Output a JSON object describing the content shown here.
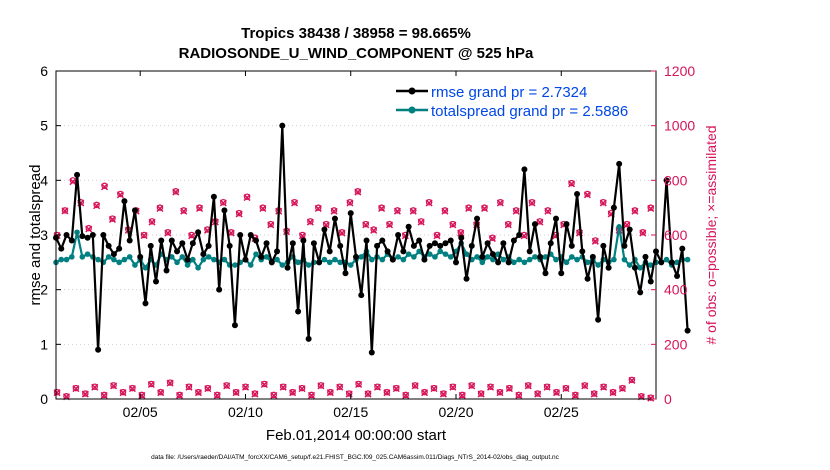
{
  "title": {
    "line1": "Tropics 38438 / 38958 = 98.665%",
    "line2": "RADIOSONDE_U_WIND_COMPONENT @ 525 hPa"
  },
  "footer": "data file: /Users/raeder/DAI/ATM_forcXX/CAM6_setup/f.e21.FHIST_BGC.f09_025.CAM6assim.011/Diags_NTrS_2014-02/obs_diag_output.nc",
  "chart_data": {
    "type": "line",
    "title": "Tropics 38438 / 38958 = 98.665%  RADIOSONDE_U_WIND_COMPONENT @ 525 hPa",
    "xlabel": "Feb.01,2014 00:00:00 start",
    "ylabel_left": "rmse and totalspread",
    "ylabel_right": "# of obs: o=possible; ×=assimilated",
    "xlim": [
      1,
      29.5
    ],
    "ylim_left": [
      0,
      6
    ],
    "ylim_right": [
      0,
      1200
    ],
    "x_ticks": [
      5,
      10,
      15,
      20,
      25
    ],
    "x_tick_labels": [
      "02/05",
      "02/10",
      "02/15",
      "02/20",
      "02/25"
    ],
    "y_left_ticks": [
      "0",
      "1",
      "2",
      "3",
      "4",
      "5",
      "6"
    ],
    "y_right_ticks": [
      "0",
      "200",
      "400",
      "600",
      "800",
      "1000",
      "1200"
    ],
    "colors": {
      "rmse": "#000000",
      "spread": "#008080",
      "obs": "#d6145a",
      "legend_text": "#0047e6"
    },
    "legend": [
      {
        "name": "rmse grand pr = 2.7324",
        "series": "rmse"
      },
      {
        "name": "totalspread grand pr = 2.5886",
        "series": "spread"
      }
    ],
    "x_step": 0.25,
    "x_start": 1.0,
    "rmse": [
      2.95,
      2.75,
      3.0,
      2.9,
      4.1,
      2.98,
      2.95,
      3.0,
      0.9,
      3.0,
      2.8,
      2.65,
      2.75,
      3.62,
      2.9,
      3.45,
      2.6,
      1.75,
      2.8,
      2.15,
      2.9,
      2.35,
      2.9,
      2.7,
      2.85,
      2.55,
      2.85,
      3.05,
      2.65,
      2.8,
      3.7,
      2.0,
      3.45,
      2.8,
      1.35,
      3.0,
      2.55,
      3.0,
      2.9,
      2.6,
      2.85,
      2.5,
      2.7,
      5.0,
      2.4,
      2.85,
      1.6,
      2.9,
      1.1,
      2.85,
      2.5,
      3.1,
      2.7,
      3.3,
      2.8,
      2.3,
      3.4,
      2.6,
      1.9,
      2.9,
      0.85,
      2.8,
      2.9,
      2.7,
      2.55,
      3.0,
      2.7,
      3.15,
      2.8,
      2.9,
      2.55,
      2.8,
      2.85,
      2.8,
      2.85,
      2.9,
      2.5,
      2.95,
      2.2,
      2.8,
      3.3,
      2.6,
      2.85,
      2.65,
      2.5,
      2.85,
      2.5,
      2.9,
      3.0,
      4.2,
      2.7,
      3.2,
      2.6,
      2.3,
      2.85,
      3.3,
      2.3,
      3.2,
      2.8,
      3.75,
      2.7,
      2.2,
      2.6,
      1.45,
      2.8,
      2.4,
      3.5,
      4.3,
      2.8,
      3.1,
      2.4,
      1.95,
      2.6,
      2.15,
      2.7,
      2.5,
      4.0,
      2.5,
      2.25,
      2.75,
      1.25
    ],
    "spread": [
      2.5,
      2.55,
      2.55,
      2.6,
      3.05,
      2.6,
      2.65,
      2.6,
      2.55,
      2.5,
      2.6,
      2.55,
      2.5,
      2.55,
      2.6,
      2.45,
      2.55,
      2.4,
      2.55,
      2.45,
      2.65,
      2.55,
      2.6,
      2.5,
      2.6,
      2.45,
      2.55,
      2.4,
      2.55,
      2.6,
      2.55,
      2.5,
      2.55,
      2.45,
      2.45,
      2.5,
      2.55,
      2.45,
      2.65,
      2.55,
      2.6,
      2.5,
      2.55,
      2.45,
      2.5,
      2.6,
      2.5,
      2.55,
      2.45,
      2.5,
      2.5,
      2.55,
      2.5,
      2.55,
      2.5,
      2.5,
      2.45,
      2.55,
      2.6,
      2.7,
      2.55,
      2.6,
      2.55,
      2.65,
      2.55,
      2.6,
      2.55,
      2.65,
      2.6,
      2.7,
      2.6,
      2.65,
      2.6,
      2.7,
      2.65,
      2.6,
      2.7,
      2.85,
      2.65,
      2.55,
      2.6,
      2.5,
      2.6,
      2.55,
      2.65,
      2.55,
      2.6,
      2.5,
      2.55,
      2.5,
      2.55,
      2.6,
      2.55,
      2.6,
      2.65,
      2.55,
      2.6,
      2.5,
      2.6,
      2.55,
      2.6,
      2.5,
      2.55,
      2.45,
      2.55,
      2.5,
      2.55,
      3.15,
      2.55,
      2.45,
      2.55,
      2.4,
      2.5,
      2.45,
      2.5,
      2.5,
      2.55,
      2.45,
      2.5,
      2.55,
      2.55
    ],
    "obs_possible_high": [
      600,
      690,
      800,
      720,
      625,
      710,
      780,
      660,
      750,
      620,
      690,
      600,
      650,
      700,
      610,
      760,
      690,
      600,
      700,
      620,
      650,
      720,
      610,
      680,
      740,
      590,
      700,
      640,
      690,
      615,
      720,
      600,
      650,
      700,
      640,
      690,
      610,
      720,
      760,
      640,
      620,
      700,
      640,
      690,
      600,
      690,
      650,
      720,
      600,
      690,
      640,
      610,
      700,
      640,
      700,
      590,
      720,
      640,
      690,
      600,
      720,
      650,
      690,
      600,
      640,
      790,
      610,
      750,
      580,
      720,
      680,
      620,
      640,
      690,
      610,
      700
    ],
    "obs_assim_high": [
      598,
      688,
      795,
      717,
      622,
      707,
      776,
      657,
      747,
      617,
      687,
      598,
      647,
      697,
      607,
      757,
      687,
      597,
      697,
      617,
      647,
      717,
      607,
      677,
      737,
      587,
      697,
      637,
      687,
      612,
      717,
      597,
      647,
      697,
      637,
      687,
      607,
      717,
      757,
      637,
      617,
      697,
      637,
      687,
      597,
      687,
      647,
      717,
      597,
      687,
      637,
      607,
      697,
      637,
      697,
      587,
      717,
      637,
      687,
      597,
      717,
      647,
      687,
      597,
      637,
      787,
      607,
      747,
      577,
      717,
      677,
      617,
      637,
      687,
      607,
      697
    ],
    "obs_possible_low": [
      25,
      10,
      40,
      20,
      45,
      15,
      50,
      25,
      40,
      15,
      55,
      25,
      60,
      15,
      45,
      25,
      40,
      15,
      50,
      25,
      45,
      20,
      55,
      15,
      45,
      25,
      40,
      15,
      50,
      25,
      45,
      20,
      55,
      20,
      45,
      25,
      40,
      15,
      50,
      25,
      40,
      20,
      45,
      15,
      50,
      20,
      45,
      25,
      40,
      15,
      50,
      20,
      45,
      25,
      40,
      15,
      50,
      20,
      45,
      25,
      40,
      70,
      10,
      5
    ],
    "obs_assim_low": [
      23,
      8,
      38,
      18,
      43,
      13,
      48,
      23,
      38,
      13,
      53,
      23,
      58,
      13,
      43,
      23,
      38,
      13,
      48,
      23,
      43,
      18,
      53,
      13,
      43,
      23,
      38,
      13,
      48,
      23,
      43,
      18,
      53,
      18,
      43,
      23,
      38,
      13,
      48,
      23,
      38,
      18,
      43,
      13,
      48,
      18,
      43,
      23,
      38,
      13,
      48,
      18,
      43,
      23,
      38,
      13,
      48,
      18,
      43,
      23,
      38,
      68,
      8,
      3
    ]
  }
}
